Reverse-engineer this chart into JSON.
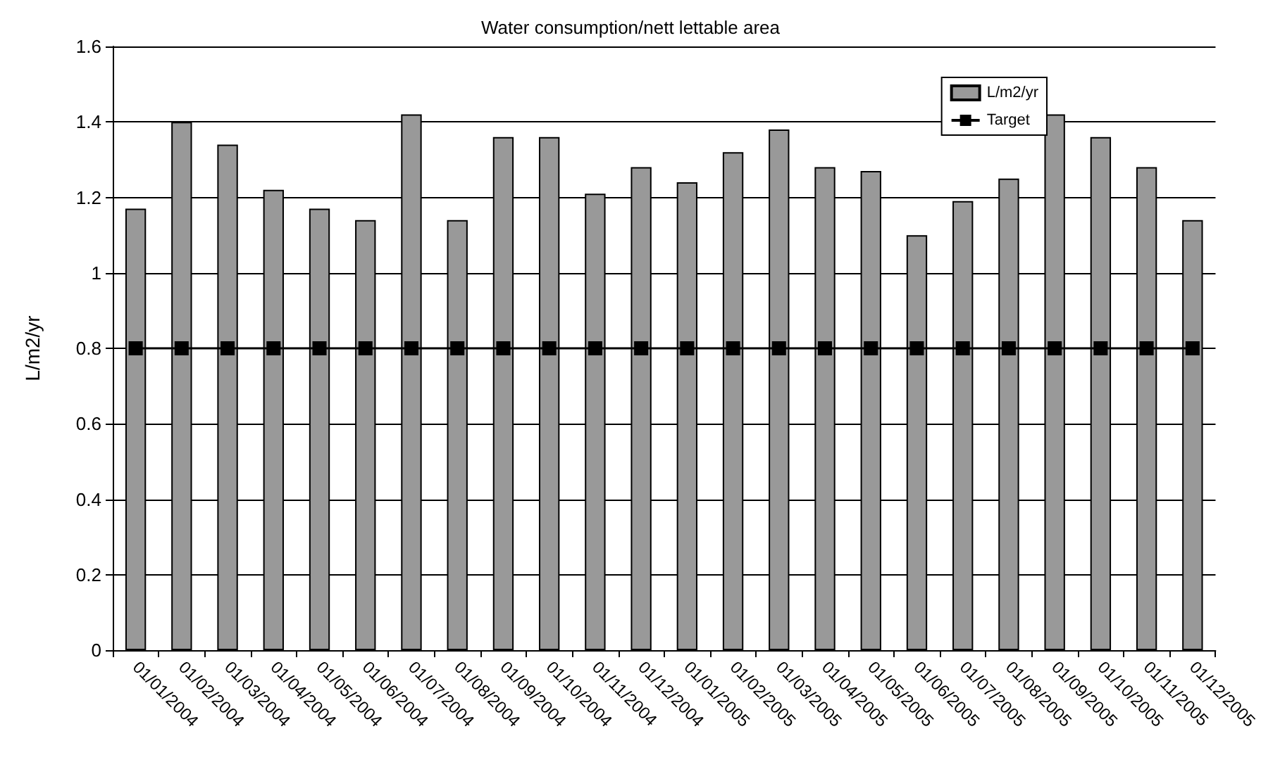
{
  "chart_data": {
    "type": "bar",
    "title": "Water consumption/nett lettable area",
    "ylabel": "L/m2/yr",
    "categories": [
      "01/01/2004",
      "01/02/2004",
      "01/03/2004",
      "01/04/2004",
      "01/05/2004",
      "01/06/2004",
      "01/07/2004",
      "01/08/2004",
      "01/09/2004",
      "01/10/2004",
      "01/11/2004",
      "01/12/2004",
      "01/01/2005",
      "01/02/2005",
      "01/03/2005",
      "01/04/2005",
      "01/05/2005",
      "01/06/2005",
      "01/07/2005",
      "01/08/2005",
      "01/09/2005",
      "01/10/2005",
      "01/11/2005",
      "01/12/2005"
    ],
    "series": [
      {
        "name": "L/m2/yr",
        "color": "#999999",
        "values": [
          1.17,
          1.4,
          1.34,
          1.22,
          1.17,
          1.14,
          1.42,
          1.14,
          1.36,
          1.36,
          1.21,
          1.28,
          1.24,
          1.32,
          1.38,
          1.28,
          1.27,
          1.1,
          1.19,
          1.25,
          1.42,
          1.36,
          1.28,
          1.14
        ]
      },
      {
        "name": "Target",
        "type": "line",
        "marker": "square",
        "color": "#000000",
        "values": [
          0.8,
          0.8,
          0.8,
          0.8,
          0.8,
          0.8,
          0.8,
          0.8,
          0.8,
          0.8,
          0.8,
          0.8,
          0.8,
          0.8,
          0.8,
          0.8,
          0.8,
          0.8,
          0.8,
          0.8,
          0.8,
          0.8,
          0.8,
          0.8
        ]
      }
    ],
    "ylim": [
      0,
      1.6
    ],
    "yticks": [
      0,
      0.2,
      0.4,
      0.6,
      0.8,
      1,
      1.2,
      1.4,
      1.6
    ],
    "grid": "y",
    "legend": "top right"
  }
}
